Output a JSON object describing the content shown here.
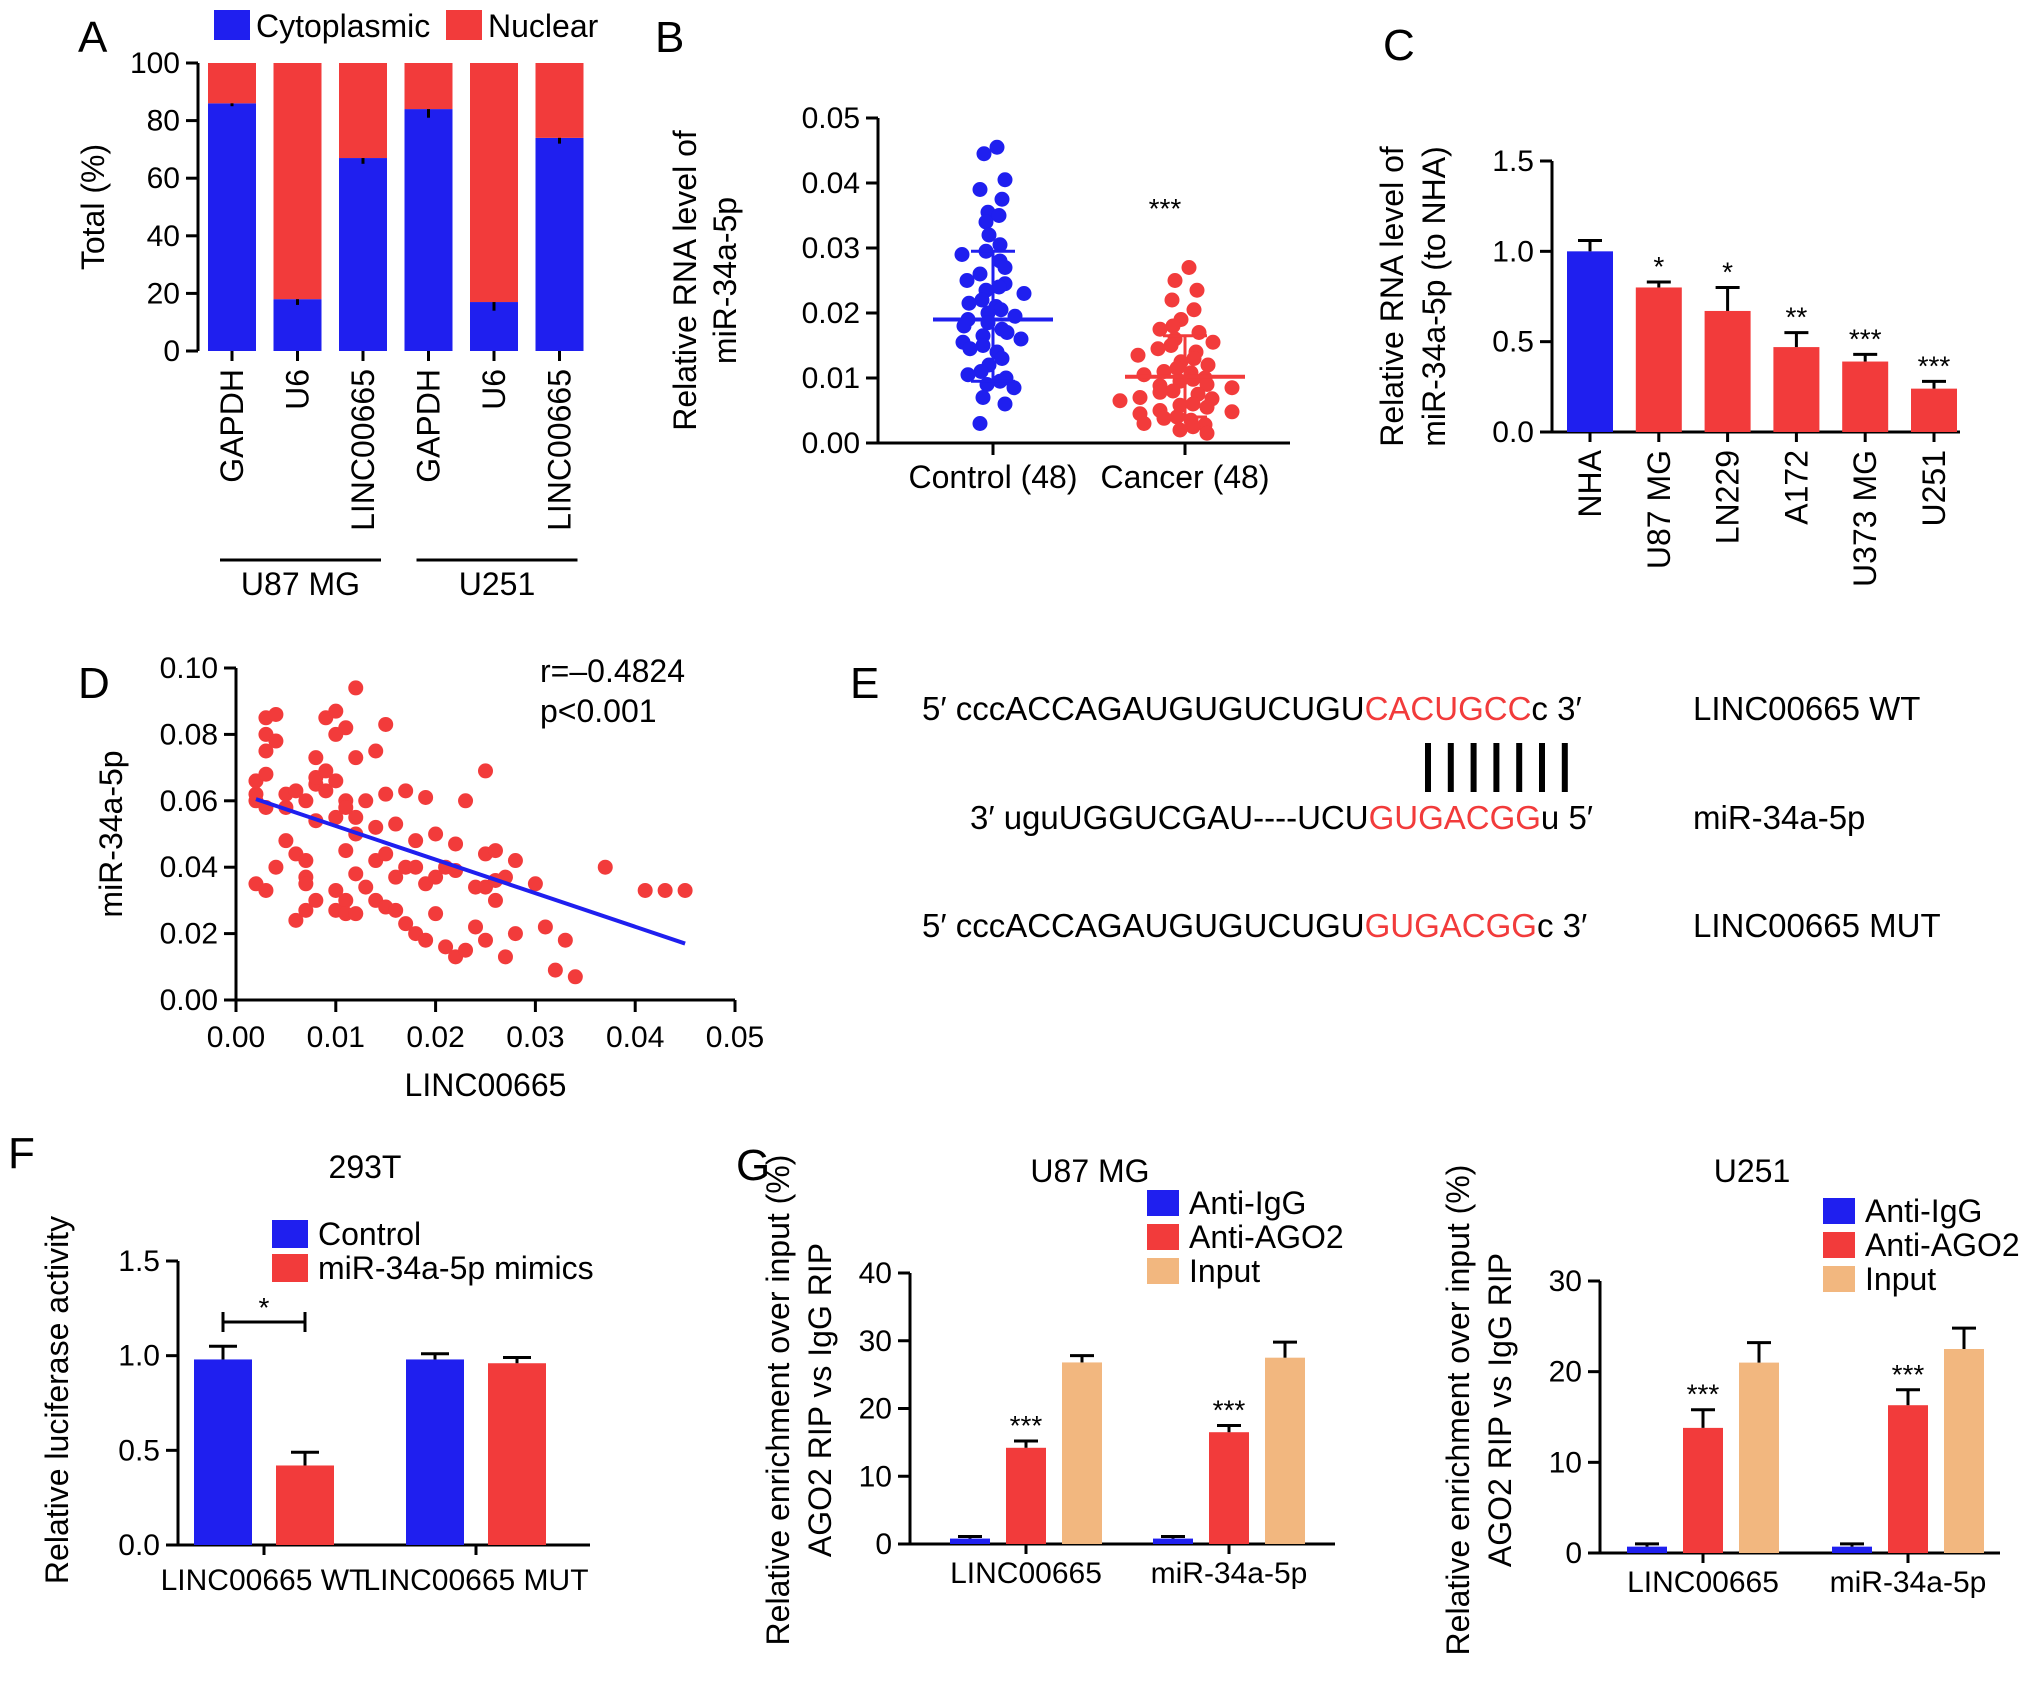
{
  "colors": {
    "blue": "#1f1fef",
    "red": "#f23b3b",
    "tan": "#f2b77f",
    "black": "#000000"
  },
  "chart_data": [
    {
      "id": "A",
      "type": "bar",
      "stacked": true,
      "panel_label": "A",
      "categories": [
        "GAPDH",
        "U6",
        "LINC00665",
        "GAPDH",
        "U6",
        "LINC00665"
      ],
      "groups": [
        {
          "label": "U87 MG",
          "start": 0,
          "end": 2
        },
        {
          "label": "U251",
          "start": 3,
          "end": 5
        }
      ],
      "series": [
        {
          "name": "Cytoplasmic",
          "color_key": "blue",
          "values": [
            86,
            18,
            67,
            84,
            17,
            74
          ],
          "errors": [
            1,
            2,
            2,
            3,
            3,
            2
          ]
        },
        {
          "name": "Nuclear",
          "color_key": "red",
          "values": [
            14,
            82,
            33,
            16,
            83,
            26
          ]
        }
      ],
      "ylabel": "Total (%)",
      "ylim": [
        0,
        100
      ],
      "yticks": [
        0,
        20,
        40,
        60,
        80,
        100
      ],
      "ytick_labels": [
        "0",
        "20",
        "40",
        "60",
        "80",
        "100"
      ],
      "legend_position": "top"
    },
    {
      "id": "B",
      "type": "scatter",
      "panel_label": "B",
      "categories": [
        "Control (48)",
        "Cancer (48)"
      ],
      "ylabel": [
        "Relative RNA level of",
        "miR-34a-5p"
      ],
      "ylim": [
        0,
        0.05
      ],
      "yticks": [
        0,
        0.01,
        0.02,
        0.03,
        0.04,
        0.05
      ],
      "ytick_labels": [
        "0.00",
        "0.01",
        "0.02",
        "0.03",
        "0.04",
        "0.05"
      ],
      "groups": [
        {
          "name": "Control (48)",
          "color_key": "blue",
          "mean": 0.019,
          "sd_low": 0.0095,
          "sd_high": 0.0295,
          "values": [
            0.0455,
            0.0445,
            0.0405,
            0.039,
            0.0375,
            0.0355,
            0.035,
            0.034,
            0.032,
            0.0305,
            0.0295,
            0.029,
            0.028,
            0.027,
            0.026,
            0.025,
            0.0245,
            0.024,
            0.0235,
            0.023,
            0.022,
            0.0215,
            0.021,
            0.0205,
            0.02,
            0.0195,
            0.019,
            0.0185,
            0.018,
            0.0175,
            0.017,
            0.0165,
            0.016,
            0.0155,
            0.015,
            0.0145,
            0.014,
            0.013,
            0.012,
            0.011,
            0.0105,
            0.01,
            0.0095,
            0.009,
            0.0085,
            0.007,
            0.006,
            0.003
          ]
        },
        {
          "name": "Cancer (48)",
          "color_key": "red",
          "mean": 0.0102,
          "sd_low": 0.004,
          "sd_high": 0.0165,
          "values": [
            0.027,
            0.025,
            0.0235,
            0.022,
            0.0205,
            0.019,
            0.018,
            0.0175,
            0.017,
            0.016,
            0.0155,
            0.015,
            0.0145,
            0.014,
            0.0135,
            0.013,
            0.0125,
            0.012,
            0.0115,
            0.011,
            0.0108,
            0.0105,
            0.01,
            0.0098,
            0.0095,
            0.009,
            0.0088,
            0.0085,
            0.008,
            0.0078,
            0.0075,
            0.007,
            0.0068,
            0.0065,
            0.006,
            0.0058,
            0.0055,
            0.005,
            0.0048,
            0.0045,
            0.004,
            0.0038,
            0.0035,
            0.003,
            0.0028,
            0.0025,
            0.002,
            0.0015
          ]
        }
      ],
      "annotations": [
        {
          "group": 1,
          "text": "***"
        }
      ]
    },
    {
      "id": "C",
      "type": "bar",
      "panel_label": "C",
      "categories": [
        "NHA",
        "U87 MG",
        "LN229",
        "A172",
        "U373 MG",
        "U251"
      ],
      "values": [
        1.0,
        0.8,
        0.67,
        0.47,
        0.39,
        0.24
      ],
      "errors": [
        0.06,
        0.03,
        0.13,
        0.08,
        0.04,
        0.04
      ],
      "bar_color_keys": [
        "blue",
        "red",
        "red",
        "red",
        "red",
        "red"
      ],
      "annotations": [
        "",
        "*",
        "*",
        "**",
        "***",
        "***"
      ],
      "ylabel": [
        "Relative RNA level of",
        "miR-34a-5p (to NHA)"
      ],
      "ylim": [
        0,
        1.5
      ],
      "yticks": [
        0,
        0.5,
        1.0,
        1.5
      ],
      "ytick_labels": [
        "0.0",
        "0.5",
        "1.0",
        "1.5"
      ]
    },
    {
      "id": "D",
      "type": "scatter",
      "panel_label": "D",
      "xlabel": "LINC00665",
      "ylabel": "miR-34a-5p",
      "xlim": [
        0,
        0.05
      ],
      "ylim": [
        0,
        0.1
      ],
      "xticks": [
        0,
        0.01,
        0.02,
        0.03,
        0.04,
        0.05
      ],
      "xtick_labels": [
        "0.00",
        "0.01",
        "0.02",
        "0.03",
        "0.04",
        "0.05"
      ],
      "yticks": [
        0,
        0.02,
        0.04,
        0.06,
        0.08,
        0.1
      ],
      "ytick_labels": [
        "0.00",
        "0.02",
        "0.04",
        "0.06",
        "0.08",
        "0.10"
      ],
      "stat_lines": [
        "r=–0.4824",
        "p<0.001"
      ],
      "fit": {
        "x0": 0.002,
        "y0": 0.0605,
        "x1": 0.045,
        "y1": 0.017
      },
      "points": [
        [
          0.002,
          0.06
        ],
        [
          0.002,
          0.062
        ],
        [
          0.002,
          0.066
        ],
        [
          0.003,
          0.075
        ],
        [
          0.003,
          0.08
        ],
        [
          0.003,
          0.085
        ],
        [
          0.004,
          0.086
        ],
        [
          0.004,
          0.078
        ],
        [
          0.003,
          0.068
        ],
        [
          0.003,
          0.058
        ],
        [
          0.002,
          0.035
        ],
        [
          0.003,
          0.033
        ],
        [
          0.004,
          0.04
        ],
        [
          0.005,
          0.058
        ],
        [
          0.005,
          0.062
        ],
        [
          0.005,
          0.048
        ],
        [
          0.006,
          0.063
        ],
        [
          0.006,
          0.044
        ],
        [
          0.006,
          0.024
        ],
        [
          0.007,
          0.037
        ],
        [
          0.007,
          0.042
        ],
        [
          0.007,
          0.06
        ],
        [
          0.007,
          0.035
        ],
        [
          0.007,
          0.027
        ],
        [
          0.008,
          0.065
        ],
        [
          0.008,
          0.067
        ],
        [
          0.008,
          0.054
        ],
        [
          0.008,
          0.03
        ],
        [
          0.008,
          0.073
        ],
        [
          0.009,
          0.069
        ],
        [
          0.009,
          0.063
        ],
        [
          0.009,
          0.085
        ],
        [
          0.01,
          0.087
        ],
        [
          0.01,
          0.08
        ],
        [
          0.01,
          0.066
        ],
        [
          0.01,
          0.055
        ],
        [
          0.01,
          0.033
        ],
        [
          0.01,
          0.027
        ],
        [
          0.011,
          0.082
        ],
        [
          0.011,
          0.06
        ],
        [
          0.011,
          0.058
        ],
        [
          0.011,
          0.045
        ],
        [
          0.011,
          0.03
        ],
        [
          0.011,
          0.026
        ],
        [
          0.012,
          0.094
        ],
        [
          0.012,
          0.073
        ],
        [
          0.012,
          0.055
        ],
        [
          0.012,
          0.05
        ],
        [
          0.012,
          0.038
        ],
        [
          0.012,
          0.026
        ],
        [
          0.013,
          0.06
        ],
        [
          0.013,
          0.034
        ],
        [
          0.014,
          0.075
        ],
        [
          0.014,
          0.052
        ],
        [
          0.014,
          0.042
        ],
        [
          0.014,
          0.03
        ],
        [
          0.015,
          0.083
        ],
        [
          0.015,
          0.062
        ],
        [
          0.015,
          0.044
        ],
        [
          0.015,
          0.028
        ],
        [
          0.016,
          0.053
        ],
        [
          0.016,
          0.037
        ],
        [
          0.016,
          0.027
        ],
        [
          0.017,
          0.063
        ],
        [
          0.017,
          0.04
        ],
        [
          0.017,
          0.023
        ],
        [
          0.018,
          0.048
        ],
        [
          0.018,
          0.04
        ],
        [
          0.018,
          0.02
        ],
        [
          0.019,
          0.061
        ],
        [
          0.019,
          0.035
        ],
        [
          0.019,
          0.018
        ],
        [
          0.02,
          0.05
        ],
        [
          0.02,
          0.037
        ],
        [
          0.02,
          0.026
        ],
        [
          0.021,
          0.04
        ],
        [
          0.021,
          0.016
        ],
        [
          0.022,
          0.047
        ],
        [
          0.022,
          0.039
        ],
        [
          0.022,
          0.013
        ],
        [
          0.023,
          0.06
        ],
        [
          0.023,
          0.015
        ],
        [
          0.024,
          0.034
        ],
        [
          0.024,
          0.022
        ],
        [
          0.025,
          0.069
        ],
        [
          0.025,
          0.044
        ],
        [
          0.025,
          0.034
        ],
        [
          0.025,
          0.018
        ],
        [
          0.026,
          0.045
        ],
        [
          0.026,
          0.036
        ],
        [
          0.026,
          0.03
        ],
        [
          0.027,
          0.037
        ],
        [
          0.027,
          0.013
        ],
        [
          0.028,
          0.042
        ],
        [
          0.028,
          0.02
        ],
        [
          0.03,
          0.035
        ],
        [
          0.031,
          0.022
        ],
        [
          0.032,
          0.009
        ],
        [
          0.033,
          0.018
        ],
        [
          0.034,
          0.007
        ],
        [
          0.037,
          0.04
        ],
        [
          0.041,
          0.033
        ],
        [
          0.043,
          0.033
        ],
        [
          0.045,
          0.033
        ]
      ]
    },
    {
      "id": "E",
      "type": "sequence_alignment",
      "panel_label": "E",
      "rows": [
        {
          "prefix": "5′ cccACCAGAUGUGUCUGU",
          "highlight": "CACUGCC",
          "suffix": "c 3′",
          "label": "LINC00665 WT"
        },
        {
          "prefix": "3′ uguUGGUCGAU----UCU",
          "highlight": "GUGACGG",
          "suffix": "u 5′",
          "label": "miR-34a-5p"
        },
        {
          "prefix": "5′ cccACCAGAUGUGUCUGU",
          "highlight": "GUGACGG",
          "suffix": "c 3′",
          "label": "LINC00665 MUT"
        }
      ],
      "pair_count": 7
    },
    {
      "id": "F",
      "type": "bar",
      "panel_label": "F",
      "title": "293T",
      "categories": [
        "LINC00665 WT",
        "LINC00665 MUT"
      ],
      "series": [
        {
          "name": "Control",
          "color_key": "blue",
          "values": [
            0.98,
            0.98
          ],
          "errors": [
            0.07,
            0.03
          ]
        },
        {
          "name": "miR-34a-5p mimics",
          "color_key": "red",
          "values": [
            0.42,
            0.96
          ],
          "errors": [
            0.07,
            0.03
          ]
        }
      ],
      "significance": [
        {
          "category": 0,
          "text": "*"
        }
      ],
      "ylabel": "Relative luciferase activity",
      "ylim": [
        0,
        1.5
      ],
      "yticks": [
        0,
        0.5,
        1.0,
        1.5
      ],
      "ytick_labels": [
        "0.0",
        "0.5",
        "1.0",
        "1.5"
      ],
      "legend_position": "top"
    },
    {
      "id": "G1",
      "type": "bar",
      "panel_label": "G",
      "title": "U87 MG",
      "categories": [
        "LINC00665",
        "miR-34a-5p"
      ],
      "series": [
        {
          "name": "Anti-IgG",
          "color_key": "blue",
          "values": [
            0.8,
            0.8
          ],
          "errors": [
            0.3,
            0.3
          ]
        },
        {
          "name": "Anti-AGO2",
          "color_key": "red",
          "values": [
            14.2,
            16.5
          ],
          "errors": [
            1.0,
            1.0
          ],
          "annotations": [
            "***",
            "***"
          ]
        },
        {
          "name": "Input",
          "color_key": "tan",
          "values": [
            26.8,
            27.5
          ],
          "errors": [
            1.0,
            2.3
          ]
        }
      ],
      "ylabel": [
        "Relative enrichment over input (%)",
        "AGO2 RIP vs IgG RIP"
      ],
      "ylim": [
        0,
        40
      ],
      "yticks": [
        0,
        10,
        20,
        30,
        40
      ],
      "ytick_labels": [
        "0",
        "10",
        "20",
        "30",
        "40"
      ],
      "legend_position": "top-right"
    },
    {
      "id": "G2",
      "type": "bar",
      "title": "U251",
      "categories": [
        "LINC00665",
        "miR-34a-5p"
      ],
      "series": [
        {
          "name": "Anti-IgG",
          "color_key": "blue",
          "values": [
            0.7,
            0.7
          ],
          "errors": [
            0.3,
            0.3
          ]
        },
        {
          "name": "Anti-AGO2",
          "color_key": "red",
          "values": [
            13.8,
            16.3
          ],
          "errors": [
            2.0,
            1.7
          ],
          "annotations": [
            "***",
            "***"
          ]
        },
        {
          "name": "Input",
          "color_key": "tan",
          "values": [
            21.0,
            22.5
          ],
          "errors": [
            2.2,
            2.3
          ]
        }
      ],
      "ylabel": [
        "Relative enrichment over input (%)",
        "AGO2 RIP vs IgG RIP"
      ],
      "ylim": [
        0,
        30
      ],
      "yticks": [
        0,
        10,
        20,
        30
      ],
      "ytick_labels": [
        "0",
        "10",
        "20",
        "30"
      ],
      "legend_position": "top-right"
    }
  ]
}
